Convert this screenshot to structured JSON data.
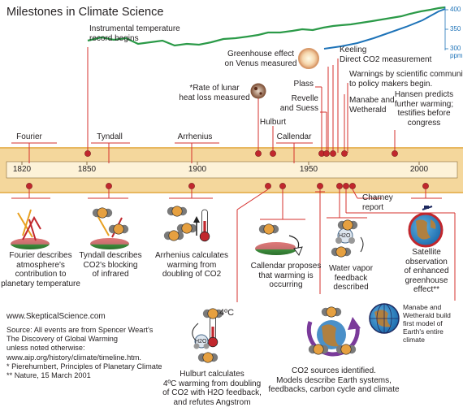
{
  "title": "Milestones in Climate Science",
  "colors": {
    "band": "#f4d79c",
    "band_edge": "#e8b860",
    "timeline_bar": "#fdf2d8",
    "marker": "#c1272d",
    "leader": "#d6302e",
    "temperature_line": "#2b9a48",
    "co2_line": "#1e73b8"
  },
  "axis": {
    "years": [
      "1820",
      "1850",
      "1900",
      "1950",
      "2000"
    ],
    "range": [
      1810,
      2020
    ]
  },
  "co2_axis": {
    "ticks": [
      "400",
      "350",
      "300"
    ],
    "unit": "ppm"
  },
  "upper_events": {
    "instrumental": {
      "line1": "Instrumental temperature",
      "line2": "record begins"
    },
    "fourier": "Fourier",
    "tyndall": "Tyndall",
    "arrhenius": "Arrhenius",
    "lunar": {
      "line1": "*Rate of lunar",
      "line2": "heat loss measured"
    },
    "hulburt": "Hulburt",
    "callendar": "Callendar",
    "venus": {
      "line1": "Greenhouse effect",
      "line2": "on Venus measured"
    },
    "plass": "Plass",
    "revelle": {
      "line1": "Revelle",
      "line2": "and Suess"
    },
    "keeling": {
      "line1": "Keeling",
      "line2": "Direct CO2 measurement"
    },
    "warnings": {
      "line1": "Warnings by scientific community",
      "line2": "to policy makers begin."
    },
    "manabe": {
      "line1": "Manabe and",
      "line2": "Wetherald"
    },
    "hansen": {
      "line1": "Hansen predicts",
      "line2": "further warming;",
      "line3": "testifies before",
      "line4": "congress"
    }
  },
  "lower_events": {
    "fourier": {
      "line1": "Fourier describes",
      "line2": "atmosphere's",
      "line3": "contribution to",
      "line4": "planetary temperature"
    },
    "tyndall": {
      "line1": "Tyndall describes",
      "line2": "CO2's blocking",
      "line3": "of infrared"
    },
    "arrhenius": {
      "line1": "Arrhenius calculates",
      "line2": "warming from",
      "line3": "doubling of CO2"
    },
    "callendar": {
      "line1": "Callendar proposes",
      "line2": "that warming is",
      "line3": "occurring"
    },
    "charney": {
      "line1": "Charney",
      "line2": "report"
    },
    "satellite": {
      "line1": "Satellite",
      "line2": "observation",
      "line3": "of enhanced",
      "line4": "greenhouse",
      "line5": "effect**"
    },
    "water_vapor": {
      "line1": "Water vapor",
      "line2": "feedback",
      "line3": "described"
    },
    "hulburt": {
      "line1": "Hulburt calculates",
      "line2": "4ºC warming from doubling",
      "line3": "of CO2 with H2O feedback,",
      "line4": "and refutes Angstrom"
    },
    "co2_sources": {
      "line1": "CO2 sources identified.",
      "line2": "Models describe Earth systems,",
      "line3": "feedbacks, carbon cycle and climate"
    },
    "manabe_model": {
      "line1": "Manabe and",
      "line2": "Wetherald build",
      "line3": "first model of",
      "line4": "Earth's entire",
      "line5": "climate"
    }
  },
  "icon_text": {
    "four_c": "4ºC",
    "h2o": "H2O",
    "co2": "CO2"
  },
  "source": {
    "website": "www.SkepticalScience.com",
    "line1": "Source: All events are from Spencer Weart's",
    "line2": "The Discovery of Global Warming",
    "line3": "unless noted otherwise:",
    "line4": "www.aip.org/history/climate/timeline.htm.",
    "line5": "* Pierehumbert, Principles of Planetary Climate",
    "line6": "** Nature, 15 March 2001"
  }
}
